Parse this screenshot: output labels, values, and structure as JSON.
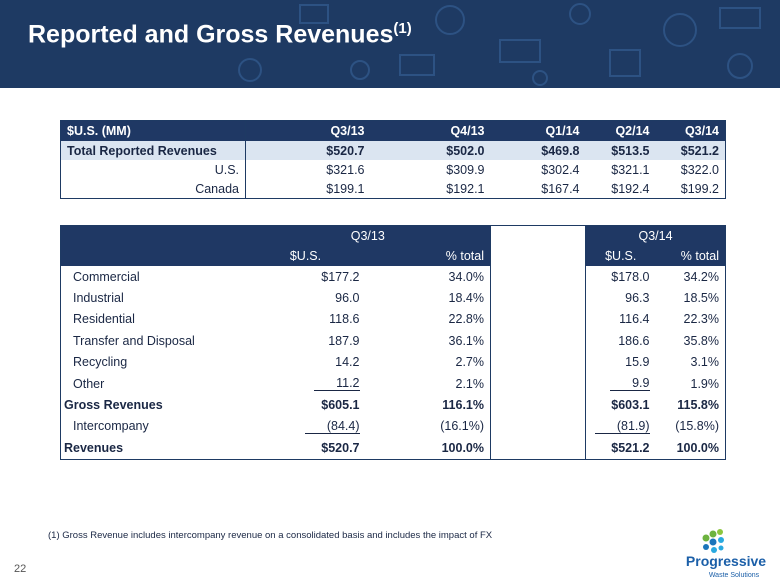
{
  "header": {
    "title": "Reported and Gross Revenues",
    "title_sup": "(1)"
  },
  "table1": {
    "columns": [
      "$U.S. (MM)",
      "Q3/13",
      "Q4/13",
      "Q1/14",
      "Q2/14",
      "Q3/14"
    ],
    "rows": [
      [
        "Total Reported Revenues",
        "$520.7",
        "$502.0",
        "$469.8",
        "$513.5",
        "$521.2"
      ],
      [
        "U.S.",
        "$321.6",
        "$309.9",
        "$302.4",
        "$321.1",
        "$322.0"
      ],
      [
        "Canada",
        "$199.1",
        "$192.1",
        "$167.4",
        "$192.4",
        "$199.2"
      ]
    ]
  },
  "table2": {
    "groups": [
      "Q3/13",
      "Q3/14"
    ],
    "subheaders": [
      "$U.S.",
      "% total",
      "$U.S.",
      "% total"
    ],
    "rows": [
      [
        "Commercial",
        "$177.2",
        "34.0%",
        "$178.0",
        "34.2%"
      ],
      [
        "Industrial",
        "96.0",
        "18.4%",
        "96.3",
        "18.5%"
      ],
      [
        "Residential",
        "118.6",
        "22.8%",
        "116.4",
        "22.3%"
      ],
      [
        "Transfer and Disposal",
        "187.9",
        "36.1%",
        "186.6",
        "35.8%"
      ],
      [
        "Recycling",
        "14.2",
        "2.7%",
        "15.9",
        "3.1%"
      ],
      [
        "Other",
        "11.2",
        "2.1%",
        "9.9",
        "1.9%"
      ],
      [
        "Gross Revenues",
        "$605.1",
        "116.1%",
        "$603.1",
        "115.8%"
      ],
      [
        "Intercompany",
        "(84.4)",
        "(16.1%)",
        "(81.9)",
        "(15.8%)"
      ],
      [
        "Revenues",
        "$520.7",
        "100.0%",
        "$521.2",
        "100.0%"
      ]
    ]
  },
  "footnote": "(1) Gross Revenue includes intercompany revenue on a consolidated basis and includes the impact of FX",
  "page_number": "22",
  "logo": {
    "name": "Progressive",
    "tagline": "Waste Solutions"
  }
}
